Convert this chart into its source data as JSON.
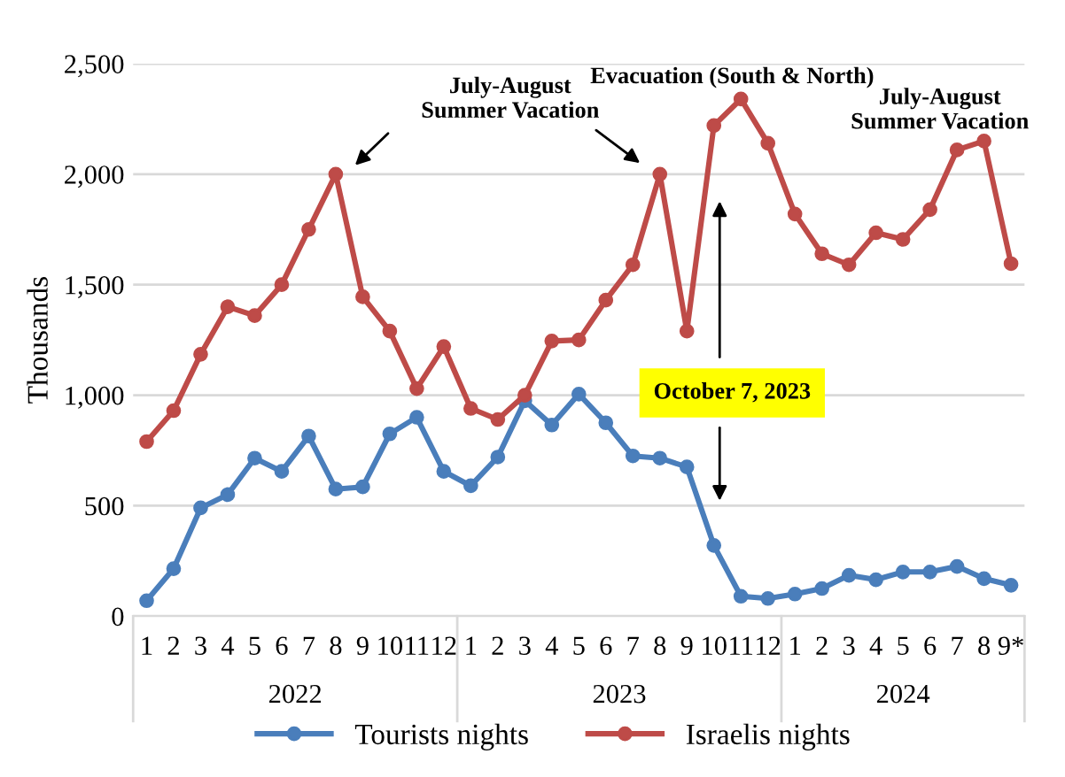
{
  "chart_data": {
    "type": "line",
    "ylabel": "Thousands",
    "categories": [
      "1",
      "2",
      "3",
      "4",
      "5",
      "6",
      "7",
      "8",
      "9",
      "10",
      "11",
      "12",
      "1",
      "2",
      "3",
      "4",
      "5",
      "6",
      "7",
      "8",
      "9",
      "10",
      "11",
      "12",
      "1",
      "2",
      "3",
      "4",
      "5",
      "6",
      "7",
      "8",
      "9*"
    ],
    "series": [
      {
        "name": "Tourists nights",
        "color": "#4a7ebb",
        "values": [
          70,
          215,
          490,
          550,
          715,
          655,
          815,
          575,
          585,
          825,
          900,
          655,
          590,
          720,
          975,
          865,
          1005,
          875,
          725,
          715,
          675,
          320,
          90,
          80,
          100,
          125,
          185,
          165,
          200,
          200,
          225,
          170,
          140
        ]
      },
      {
        "name": "Israelis nights",
        "color": "#be4b48",
        "values": [
          790,
          930,
          1185,
          1400,
          1360,
          1500,
          1750,
          2000,
          1445,
          1290,
          1030,
          1220,
          940,
          890,
          1000,
          1245,
          1250,
          1430,
          1590,
          2000,
          1290,
          2220,
          2340,
          2140,
          1820,
          1640,
          1590,
          1735,
          1705,
          1840,
          2110,
          2150,
          1595
        ]
      }
    ],
    "ylim": [
      0,
      2500
    ],
    "yticks": [
      0,
      500,
      {
        "value": 1000,
        "label": "1,000"
      },
      {
        "value": 1500,
        "label": "1,500"
      },
      {
        "value": 2000,
        "label": "2,000"
      },
      {
        "value": 2500,
        "label": "2,500"
      }
    ],
    "grid": "y",
    "legend": "bottom",
    "marker": "circle",
    "line_style": "solid",
    "annotations": [
      "July-August\nSummer Vacation",
      "Evacuation (South & North)",
      "October 7, 2023",
      "July-August\nSummer Vacation",
      "2022",
      "2023",
      "2024"
    ]
  }
}
